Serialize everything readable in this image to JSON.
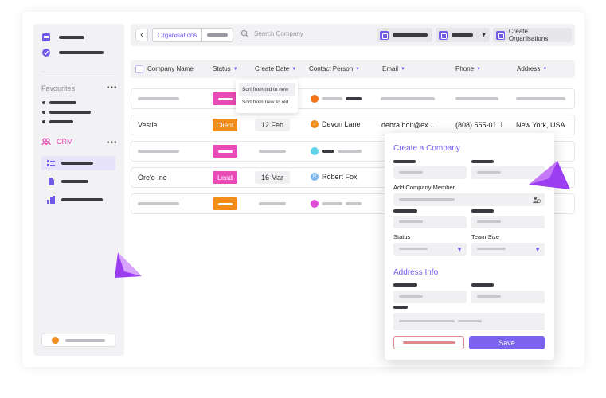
{
  "topbar": {
    "tabs": [
      "Organisations",
      ""
    ],
    "search_placeholder": "Search Company",
    "create_org_label": "Create Organisations"
  },
  "sidebar": {
    "favourites_label": "Favourites",
    "crm_label": "CRM",
    "more_glyph": "•••"
  },
  "table": {
    "headers": [
      "Company Name",
      "Status",
      "Create Date",
      "Contact Person",
      "Email",
      "Phone",
      "Address"
    ],
    "rows": [
      {
        "company": "Vestle",
        "status": "Client",
        "status_color": "#f28c1a",
        "date": "12 Feb",
        "contact": "Devon Lane",
        "contact_initial": "J",
        "avatar_color": "#f28c1a",
        "email": "debra.holt@ex...",
        "phone": "(808) 555-0111",
        "address": "New York, USA"
      },
      {
        "company": "Ore'o Inc",
        "status": "Lead",
        "status_color": "#e84bb5",
        "date": "16 Mar",
        "contact": "Robert Fox",
        "contact_initial": "R",
        "avatar_color": "#7bb8f0",
        "email": "",
        "phone": "",
        "address": ""
      }
    ]
  },
  "sort_menu": {
    "items": [
      "Sort from old to new",
      "Sort from new to old"
    ]
  },
  "modal": {
    "title": "Create a Company",
    "add_member_label": "Add Company Member",
    "status_label": "Status",
    "team_size_label": "Team Size",
    "address_title": "Address Info",
    "save_label": "Save"
  },
  "colors": {
    "accent": "#6f5be8",
    "client_orange": "#f28c1a",
    "lead_pink": "#e84bb5",
    "cancel_red": "#e08a8f"
  }
}
